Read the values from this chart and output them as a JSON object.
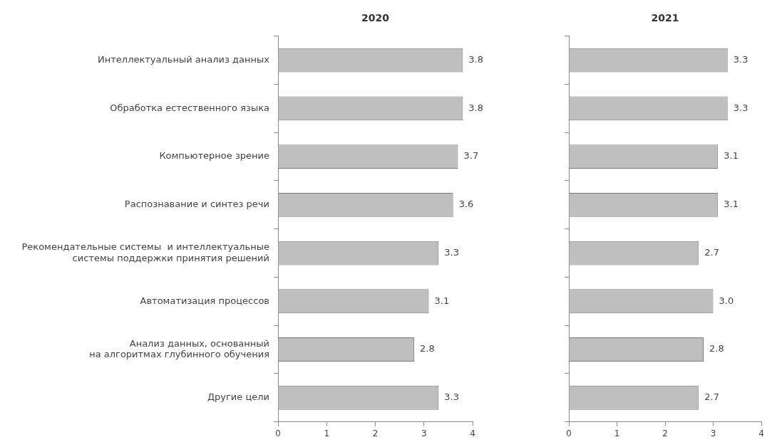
{
  "chart_data": [
    {
      "type": "bar",
      "title": "2020",
      "orientation": "horizontal",
      "categories": [
        "Интеллектуальный анализ данных",
        "Обработка естественного языка",
        "Компьютерное зрение",
        "Распознавание и синтез речи",
        "Рекомендательные системы  и интеллектуальные\nсистемы поддержки принятия решений",
        "Автоматизация процессов",
        "Анализ данных, основанный\nна алгоритмах глубинного обучения",
        "Другие цели"
      ],
      "values": [
        3.8,
        3.8,
        3.7,
        3.6,
        3.3,
        3.1,
        2.8,
        3.3
      ],
      "value_labels": [
        "3.8",
        "3.8",
        "3.7",
        "3.6",
        "3.3",
        "3.1",
        "2.8",
        "3.3"
      ],
      "color": "#bfbfbf",
      "xlim": [
        0,
        4
      ],
      "xticks": [
        0,
        1,
        2,
        3,
        4
      ]
    },
    {
      "type": "bar",
      "title": "2021",
      "orientation": "horizontal",
      "categories": [
        null,
        null,
        null,
        null,
        null,
        null,
        null,
        null
      ],
      "values": [
        3.3,
        3.3,
        3.1,
        3.1,
        2.7,
        3.0,
        2.8,
        2.7
      ],
      "value_labels": [
        "3.3",
        "3.3",
        "3.1",
        "3.1",
        "2.7",
        "3.0",
        "2.8",
        "2.7"
      ],
      "color": "#bfbfbf",
      "xlim": [
        0,
        4
      ],
      "xticks": [
        0,
        1,
        2,
        3,
        4
      ]
    }
  ]
}
